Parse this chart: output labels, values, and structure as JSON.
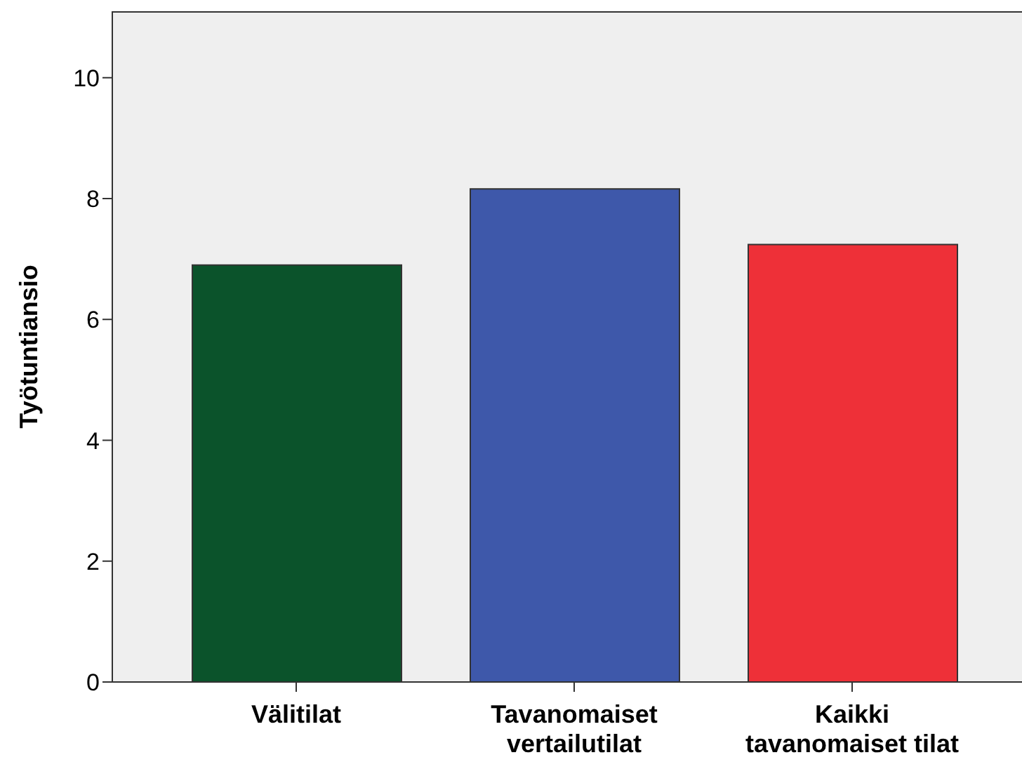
{
  "chart_data": {
    "type": "bar",
    "ylabel": "Työtuntiansio",
    "categories": [
      "Välitilat",
      "Tavanomaiset vertailutilat",
      "Kaikki tavanomaiset tilat"
    ],
    "values": [
      6.9,
      8.16,
      7.24
    ],
    "colors": [
      "#0b532b",
      "#3e58aa",
      "#ee3038"
    ],
    "ylim": [
      0,
      11.1
    ],
    "yticks": [
      0,
      2,
      4,
      6,
      8,
      10
    ],
    "grid": false
  }
}
